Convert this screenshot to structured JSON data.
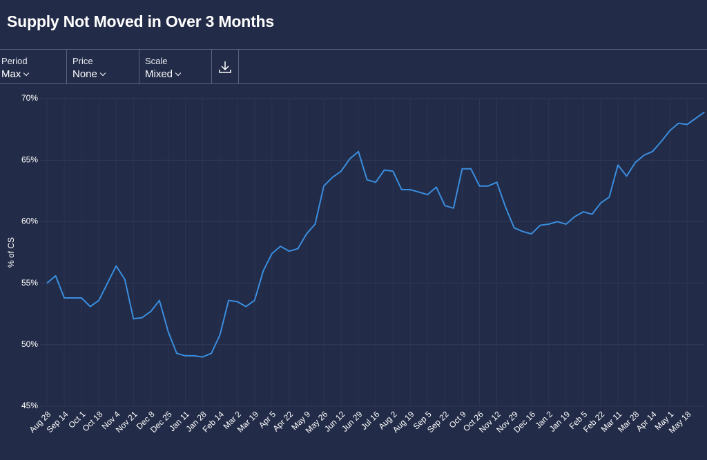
{
  "header": {
    "title": "Supply Not Moved in Over 3 Months"
  },
  "controls": [
    {
      "label": "Period",
      "value": "Max"
    },
    {
      "label": "Price",
      "value": "None"
    },
    {
      "label": "Scale",
      "value": "Mixed"
    }
  ],
  "chart_data": {
    "type": "line",
    "ylabel": "% of CS",
    "categories": [
      "Aug 28",
      null,
      "Sep 14",
      null,
      "Oct 1",
      null,
      "Oct 18",
      null,
      "Nov 4",
      null,
      "Nov 21",
      null,
      "Dec 8",
      null,
      "Dec 25",
      null,
      "Jan 11",
      null,
      "Jan 28",
      null,
      "Feb 14",
      null,
      "Mar 2",
      null,
      "Mar 19",
      null,
      "Apr 5",
      null,
      "Apr 22",
      null,
      "May 9",
      null,
      "May 26",
      null,
      "Jun 12",
      null,
      "Jun 29",
      null,
      "Jul 16",
      null,
      "Aug 2",
      null,
      "Aug 19",
      null,
      "Sep 5",
      null,
      "Sep 22",
      null,
      "Oct 9",
      null,
      "Oct 26",
      null,
      "Nov 12",
      null,
      "Nov 29",
      null,
      "Dec 16",
      null,
      "Jan 2",
      null,
      "Jan 19",
      null,
      "Feb 5",
      null,
      "Feb 22",
      null,
      "Mar 11",
      null,
      "Mar 28",
      null,
      "Apr 14",
      null,
      "May 1",
      null,
      "May 18",
      null,
      null
    ],
    "series": [
      {
        "color": "#3a8ee0",
        "values": [
          55.0,
          55.6,
          53.8,
          53.8,
          53.8,
          53.1,
          53.6,
          55.0,
          56.4,
          55.3,
          52.1,
          52.2,
          52.7,
          53.6,
          51.1,
          49.3,
          49.1,
          49.1,
          49.0,
          49.3,
          50.8,
          53.6,
          53.5,
          53.1,
          53.6,
          56.0,
          57.4,
          58.0,
          57.6,
          57.8,
          59.0,
          59.8,
          62.9,
          63.6,
          64.1,
          65.1,
          65.7,
          63.4,
          63.2,
          64.2,
          64.1,
          62.6,
          62.6,
          62.4,
          62.2,
          62.8,
          61.3,
          61.1,
          64.3,
          64.3,
          62.9,
          62.9,
          63.2,
          61.2,
          59.5,
          59.2,
          59.0,
          59.7,
          59.8,
          60.0,
          59.8,
          60.4,
          60.8,
          60.6,
          61.5,
          62.0,
          64.6,
          63.7,
          64.8,
          65.4,
          65.7,
          66.5,
          67.4,
          68.0,
          67.9,
          68.4,
          68.9
        ]
      }
    ],
    "ylim": [
      45,
      70
    ],
    "yticks": [
      {
        "value": 45,
        "label": "45%"
      },
      {
        "value": 50,
        "label": "50%"
      },
      {
        "value": 55,
        "label": "55%"
      },
      {
        "value": 60,
        "label": "60%"
      },
      {
        "value": 65,
        "label": "65%"
      },
      {
        "value": 70,
        "label": "70%"
      }
    ],
    "grid": true
  }
}
